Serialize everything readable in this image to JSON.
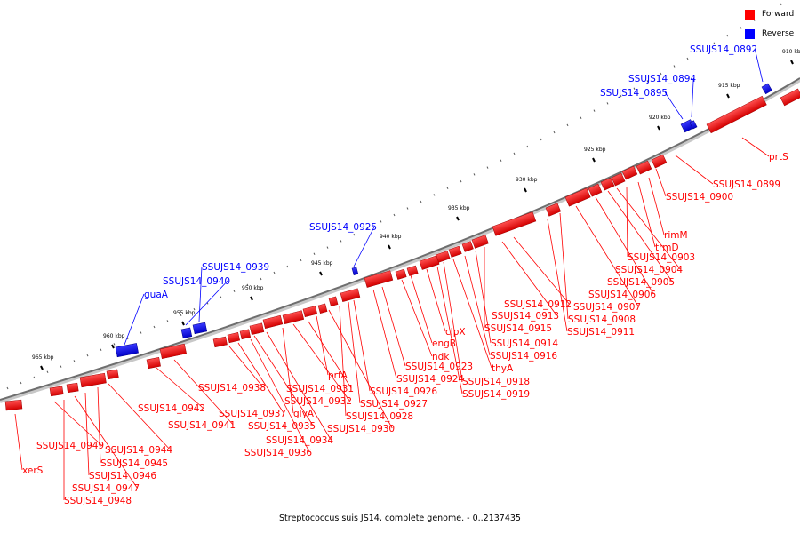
{
  "legend": {
    "forward": {
      "label": "Forward",
      "color": "#ff0000"
    },
    "reverse": {
      "label": "Reverse",
      "color": "#0000ff"
    }
  },
  "caption": "Streptococcus suis JS14, complete genome. - 0..2137435",
  "ticks": [
    "910 kbp",
    "915 kbp",
    "920 kbp",
    "925 kbp",
    "930 kbp",
    "935 kbp",
    "940 kbp",
    "945 kbp",
    "950 kbp",
    "955 kbp",
    "960 kbp",
    "965 kbp"
  ],
  "genes_forward": [
    "prtS",
    "SSUJS14_0899",
    "SSUJS14_0900",
    "rimM",
    "trmD",
    "SSUJS14_0903",
    "SSUJS14_0904",
    "SSUJS14_0905",
    "SSUJS14_0906",
    "SSUJS14_0907",
    "SSUJS14_0908",
    "SSUJS14_0911",
    "SSUJS14_0912",
    "SSUJS14_0913",
    "SSUJS14_0915",
    "SSUJS14_0914",
    "SSUJS14_0916",
    "thyA",
    "SSUJS14_0918",
    "SSUJS14_0919",
    "clpX",
    "engB",
    "ndk",
    "SSUJS14_0923",
    "SSUJS14_0924",
    "SSUJS14_0926",
    "SSUJS14_0927",
    "SSUJS14_0928",
    "SSUJS14_0930",
    "prfA",
    "SSUJS14_0931",
    "SSUJS14_0932",
    "glyA",
    "SSUJS14_0934",
    "SSUJS14_0935",
    "SSUJS14_0936",
    "SSUJS14_0937",
    "SSUJS14_0938",
    "SSUJS14_0941",
    "SSUJS14_0942",
    "SSUJS14_0944",
    "SSUJS14_0945",
    "SSUJS14_0946",
    "SSUJS14_0947",
    "SSUJS14_0948",
    "SSUJS14_0949",
    "xerS"
  ],
  "genes_reverse": [
    "SSUJS14_0892",
    "SSUJS14_0894",
    "SSUJS14_0895",
    "SSUJS14_0925",
    "SSUJS14_0939",
    "SSUJS14_0940",
    "guaA"
  ]
}
